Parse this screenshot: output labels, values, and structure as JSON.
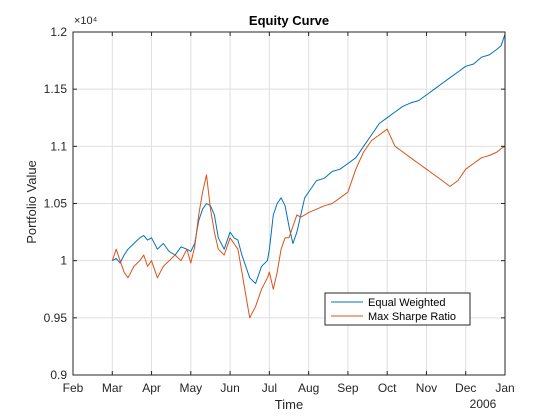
{
  "chart_data": {
    "type": "line",
    "title": "Equity Curve",
    "xlabel": "Time",
    "ylabel": "Portfolio Value",
    "y_exponent_label": "×10⁴",
    "y_multiplier": 10000,
    "ylim": [
      0.9,
      1.2
    ],
    "xlim_months": [
      0,
      11
    ],
    "y_ticks": [
      0.9,
      0.95,
      1,
      1.05,
      1.1,
      1.15,
      1.2
    ],
    "y_tick_labels": [
      "0.9",
      "0.95",
      "1",
      "1.05",
      "1.1",
      "1.15",
      "1.2"
    ],
    "x_tick_positions": [
      0,
      1,
      2,
      3,
      4,
      5,
      6,
      7,
      8,
      9,
      10,
      11
    ],
    "x_tick_labels": [
      "Feb",
      "Mar",
      "Apr",
      "May",
      "Jun",
      "Jul",
      "Aug",
      "Sep",
      "Oct",
      "Nov",
      "Dec",
      "Jan"
    ],
    "x_secondary_label": "2006",
    "grid": true,
    "legend_position": "lower-right",
    "series": [
      {
        "name": "Equal Weighted",
        "color": "#0072BD",
        "x": [
          1.0,
          1.1,
          1.2,
          1.3,
          1.4,
          1.55,
          1.7,
          1.8,
          1.9,
          2.0,
          2.15,
          2.3,
          2.45,
          2.6,
          2.75,
          2.9,
          3.0,
          3.1,
          3.2,
          3.3,
          3.4,
          3.5,
          3.6,
          3.7,
          3.85,
          4.0,
          4.1,
          4.2,
          4.3,
          4.4,
          4.5,
          4.65,
          4.8,
          4.95,
          5.0,
          5.1,
          5.2,
          5.3,
          5.4,
          5.5,
          5.6,
          5.7,
          5.8,
          5.9,
          6.0,
          6.2,
          6.4,
          6.6,
          6.8,
          7.0,
          7.2,
          7.4,
          7.6,
          7.8,
          8.0,
          8.2,
          8.4,
          8.6,
          8.8,
          9.0,
          9.2,
          9.4,
          9.6,
          9.8,
          10.0,
          10.2,
          10.4,
          10.6,
          10.8,
          10.9,
          11.0
        ],
        "y": [
          1.0,
          1.002,
          0.998,
          1.005,
          1.01,
          1.015,
          1.02,
          1.022,
          1.018,
          1.02,
          1.01,
          1.015,
          1.008,
          1.005,
          1.012,
          1.01,
          1.008,
          1.015,
          1.035,
          1.045,
          1.05,
          1.048,
          1.04,
          1.02,
          1.01,
          1.025,
          1.02,
          1.018,
          1.005,
          0.995,
          0.985,
          0.98,
          0.995,
          1.0,
          1.01,
          1.04,
          1.05,
          1.055,
          1.048,
          1.03,
          1.015,
          1.025,
          1.04,
          1.055,
          1.06,
          1.07,
          1.072,
          1.078,
          1.08,
          1.085,
          1.09,
          1.1,
          1.11,
          1.12,
          1.125,
          1.13,
          1.135,
          1.138,
          1.14,
          1.145,
          1.15,
          1.155,
          1.16,
          1.165,
          1.17,
          1.172,
          1.178,
          1.18,
          1.185,
          1.188,
          1.198
        ]
      },
      {
        "name": "Max Sharpe Ratio",
        "color": "#D95319",
        "x": [
          1.0,
          1.1,
          1.2,
          1.3,
          1.4,
          1.55,
          1.7,
          1.8,
          1.9,
          2.0,
          2.15,
          2.3,
          2.45,
          2.6,
          2.75,
          2.9,
          3.0,
          3.1,
          3.2,
          3.3,
          3.4,
          3.5,
          3.6,
          3.7,
          3.85,
          4.0,
          4.1,
          4.2,
          4.3,
          4.4,
          4.5,
          4.65,
          4.8,
          4.95,
          5.0,
          5.1,
          5.2,
          5.3,
          5.4,
          5.5,
          5.6,
          5.7,
          5.8,
          5.9,
          6.0,
          6.2,
          6.4,
          6.6,
          6.8,
          7.0,
          7.2,
          7.4,
          7.6,
          7.8,
          8.0,
          8.2,
          8.4,
          8.6,
          8.8,
          9.0,
          9.2,
          9.4,
          9.6,
          9.8,
          10.0,
          10.2,
          10.4,
          10.6,
          10.8,
          10.9,
          11.0
        ],
        "y": [
          1.0,
          1.01,
          1.0,
          0.99,
          0.985,
          0.995,
          1.0,
          1.005,
          0.995,
          1.0,
          0.985,
          0.995,
          1.0,
          1.005,
          1.0,
          1.01,
          0.998,
          1.012,
          1.04,
          1.06,
          1.075,
          1.045,
          1.025,
          1.01,
          1.005,
          1.02,
          1.015,
          1.01,
          0.99,
          0.97,
          0.95,
          0.96,
          0.975,
          0.985,
          0.99,
          0.975,
          0.99,
          1.01,
          1.02,
          1.02,
          1.03,
          1.04,
          1.038,
          1.04,
          1.042,
          1.045,
          1.048,
          1.05,
          1.055,
          1.06,
          1.08,
          1.095,
          1.105,
          1.11,
          1.115,
          1.1,
          1.095,
          1.09,
          1.085,
          1.08,
          1.075,
          1.07,
          1.065,
          1.07,
          1.08,
          1.085,
          1.09,
          1.092,
          1.095,
          1.098,
          1.1
        ]
      }
    ]
  }
}
